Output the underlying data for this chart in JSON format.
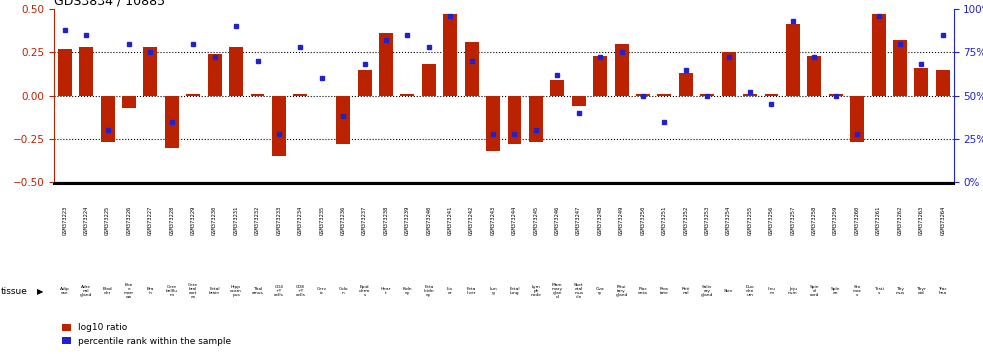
{
  "title": "GDS3834 / 10885",
  "gsm_labels": [
    "GSM373223",
    "GSM373224",
    "GSM373225",
    "GSM373226",
    "GSM373227",
    "GSM373228",
    "GSM373229",
    "GSM373230",
    "GSM373231",
    "GSM373232",
    "GSM373233",
    "GSM373234",
    "GSM373235",
    "GSM373236",
    "GSM373237",
    "GSM373238",
    "GSM373239",
    "GSM373240",
    "GSM373241",
    "GSM373242",
    "GSM373243",
    "GSM373244",
    "GSM373245",
    "GSM373246",
    "GSM373247",
    "GSM373248",
    "GSM373249",
    "GSM373250",
    "GSM373251",
    "GSM373252",
    "GSM373253",
    "GSM373254",
    "GSM373255",
    "GSM373256",
    "GSM373257",
    "GSM373258",
    "GSM373259",
    "GSM373260",
    "GSM373261",
    "GSM373262",
    "GSM373263",
    "GSM373264"
  ],
  "tissue_short": [
    "Adip\nose",
    "Adre\nnal\ngland",
    "Blad\nder",
    "Bon\ne\nmarr\now",
    "Bra\nin",
    "Cere\nbelllu\nm",
    "Cere\nbral\ncort\nex",
    "Fetal\nbrain",
    "Hipp\nocam\npus",
    "Thal\namus",
    "CD4\n+T\ncells",
    "CD8\n+T\ncells",
    "Cerv\nix",
    "Colo\nn",
    "Epid\nderm\ns",
    "Hear\nt",
    "Kidn\ney",
    "Feta\nlkidn\ney",
    "Liv\ner",
    "Feta\nliver",
    "Lun\ng",
    "Fetal\nlung",
    "Lym\nph\nnode",
    "Mam\nmary\nglan\nd",
    "Sket\netal\nmus\ncle",
    "Ova\nry",
    "Pitui\ntary\ngland",
    "Plac\nenta",
    "Pros\ntate",
    "Reti\nnal",
    "Saliv\nary\ngland",
    "Skin",
    "Duo\nden\num",
    "Ileu\nm",
    "Jeju\nnum",
    "Spin\nal\ncord",
    "Sple\nen",
    "Sto\nmac\ns",
    "Testi\ns",
    "Thy\nmus",
    "Thyr\noid",
    "Trac\nhea"
  ],
  "log10_ratio": [
    0.27,
    0.28,
    -0.27,
    -0.07,
    0.28,
    -0.3,
    0.01,
    0.24,
    0.28,
    0.01,
    -0.35,
    0.01,
    0.0,
    -0.28,
    0.15,
    0.36,
    0.01,
    0.18,
    0.47,
    0.31,
    -0.32,
    -0.28,
    -0.27,
    0.09,
    -0.06,
    0.23,
    0.3,
    0.01,
    0.01,
    0.13,
    0.01,
    0.25,
    0.01,
    0.01,
    0.41,
    0.23,
    0.01,
    -0.27,
    0.47,
    0.32,
    0.16,
    0.15
  ],
  "percentile_rank": [
    88,
    85,
    30,
    80,
    75,
    35,
    80,
    72,
    90,
    70,
    28,
    78,
    60,
    38,
    68,
    82,
    85,
    78,
    96,
    70,
    28,
    28,
    30,
    62,
    40,
    72,
    75,
    50,
    35,
    65,
    50,
    72,
    52,
    45,
    93,
    72,
    50,
    28,
    96,
    80,
    68,
    85
  ],
  "bar_color": "#bb2200",
  "dot_color": "#2222cc",
  "bg_color_gsm": "#c8c8c8",
  "bg_color_tissue": "#88cc88",
  "ylim": [
    -0.5,
    0.5
  ],
  "r_ylim": [
    0,
    100
  ],
  "hlines": [
    0.25,
    0.0,
    -0.25
  ],
  "bar_width": 0.65
}
